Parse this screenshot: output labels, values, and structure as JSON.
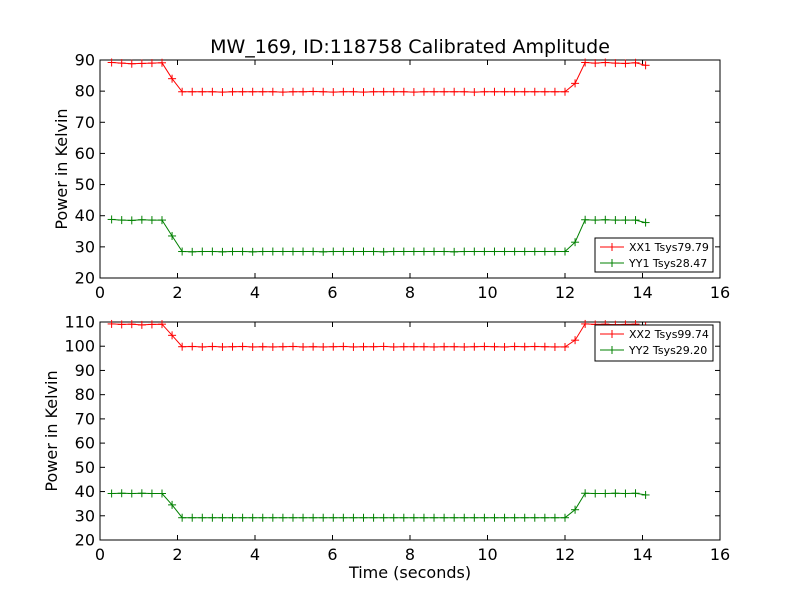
{
  "chart_data": [
    {
      "type": "line",
      "title": "MW_169, ID:118758 Calibrated Amplitude",
      "xlabel": "",
      "ylabel": "Power in Kelvin",
      "xlim": [
        0,
        16
      ],
      "ylim": [
        20,
        90
      ],
      "xticks": [
        "0",
        "2",
        "4",
        "6",
        "8",
        "10",
        "12",
        "14",
        "16"
      ],
      "yticks": [
        "20",
        "30",
        "40",
        "50",
        "60",
        "70",
        "80",
        "90"
      ],
      "grid": false,
      "legend_position": "lower-right",
      "x": [
        0.3,
        0.56,
        0.82,
        1.08,
        1.34,
        1.6,
        1.86,
        2.12,
        2.38,
        2.64,
        2.9,
        3.16,
        3.42,
        3.68,
        3.94,
        4.2,
        4.46,
        4.72,
        4.98,
        5.24,
        5.5,
        5.76,
        6.02,
        6.28,
        6.54,
        6.8,
        7.06,
        7.32,
        7.58,
        7.84,
        8.1,
        8.36,
        8.62,
        8.88,
        9.14,
        9.4,
        9.66,
        9.92,
        10.18,
        10.44,
        10.7,
        10.96,
        11.22,
        11.48,
        11.74,
        12.0,
        12.26,
        12.52,
        12.78,
        13.04,
        13.3,
        13.56,
        13.82,
        14.08
      ],
      "series": [
        {
          "name": "XX1 Tsys79.79",
          "color": "#ff0000",
          "values": [
            89.2,
            89.0,
            88.8,
            88.9,
            89.0,
            89.1,
            84.0,
            79.8,
            79.8,
            79.8,
            79.8,
            79.7,
            79.8,
            79.8,
            79.8,
            79.8,
            79.8,
            79.7,
            79.8,
            79.8,
            79.9,
            79.8,
            79.7,
            79.8,
            79.8,
            79.7,
            79.8,
            79.8,
            79.8,
            79.8,
            79.7,
            79.8,
            79.8,
            79.8,
            79.8,
            79.8,
            79.7,
            79.8,
            79.8,
            79.8,
            79.8,
            79.8,
            79.8,
            79.8,
            79.8,
            79.8,
            82.5,
            89.2,
            89.0,
            89.2,
            89.0,
            88.9,
            89.1,
            88.3
          ]
        },
        {
          "name": "YY1 Tsys28.47",
          "color": "#008000",
          "values": [
            38.8,
            38.6,
            38.5,
            38.7,
            38.6,
            38.6,
            33.5,
            28.5,
            28.4,
            28.5,
            28.5,
            28.4,
            28.5,
            28.5,
            28.4,
            28.5,
            28.5,
            28.5,
            28.5,
            28.5,
            28.5,
            28.4,
            28.5,
            28.5,
            28.5,
            28.5,
            28.5,
            28.4,
            28.5,
            28.5,
            28.5,
            28.5,
            28.5,
            28.5,
            28.4,
            28.5,
            28.5,
            28.5,
            28.5,
            28.5,
            28.5,
            28.5,
            28.5,
            28.5,
            28.5,
            28.5,
            31.5,
            38.7,
            38.6,
            38.7,
            38.6,
            38.6,
            38.6,
            37.8
          ]
        }
      ]
    },
    {
      "type": "line",
      "title": "",
      "xlabel": "Time (seconds)",
      "ylabel": "Power in Kelvin",
      "xlim": [
        0,
        16
      ],
      "ylim": [
        20,
        110
      ],
      "xticks": [
        "0",
        "2",
        "4",
        "6",
        "8",
        "10",
        "12",
        "14",
        "16"
      ],
      "yticks": [
        "20",
        "30",
        "40",
        "50",
        "60",
        "70",
        "80",
        "90",
        "100",
        "110"
      ],
      "grid": false,
      "legend_position": "upper-right",
      "x": [
        0.3,
        0.56,
        0.82,
        1.08,
        1.34,
        1.6,
        1.86,
        2.12,
        2.38,
        2.64,
        2.9,
        3.16,
        3.42,
        3.68,
        3.94,
        4.2,
        4.46,
        4.72,
        4.98,
        5.24,
        5.5,
        5.76,
        6.02,
        6.28,
        6.54,
        6.8,
        7.06,
        7.32,
        7.58,
        7.84,
        8.1,
        8.36,
        8.62,
        8.88,
        9.14,
        9.4,
        9.66,
        9.92,
        10.18,
        10.44,
        10.7,
        10.96,
        11.22,
        11.48,
        11.74,
        12.0,
        12.26,
        12.52,
        12.78,
        13.04,
        13.3,
        13.56,
        13.82,
        14.08
      ],
      "series": [
        {
          "name": "XX2 Tsys99.74",
          "color": "#ff0000",
          "values": [
            109.2,
            109.0,
            109.1,
            108.8,
            109.0,
            109.1,
            104.5,
            99.8,
            99.9,
            99.7,
            99.9,
            99.7,
            99.8,
            99.9,
            99.7,
            99.8,
            99.7,
            99.8,
            99.9,
            99.7,
            99.8,
            99.7,
            99.8,
            99.9,
            99.7,
            99.8,
            99.8,
            99.9,
            99.7,
            99.8,
            99.8,
            99.8,
            99.7,
            99.8,
            99.8,
            99.7,
            99.8,
            99.9,
            99.8,
            99.7,
            99.9,
            99.8,
            99.9,
            99.8,
            99.7,
            99.7,
            102.5,
            109.2,
            109.0,
            109.1,
            108.9,
            109.0,
            109.1,
            108.2
          ]
        },
        {
          "name": "YY2 Tsys29.20",
          "color": "#008000",
          "values": [
            39.2,
            39.3,
            39.2,
            39.3,
            39.2,
            39.2,
            34.5,
            29.2,
            29.2,
            29.2,
            29.2,
            29.2,
            29.2,
            29.2,
            29.2,
            29.2,
            29.2,
            29.2,
            29.2,
            29.2,
            29.2,
            29.2,
            29.2,
            29.2,
            29.2,
            29.2,
            29.2,
            29.2,
            29.2,
            29.2,
            29.2,
            29.2,
            29.2,
            29.2,
            29.2,
            29.2,
            29.2,
            29.2,
            29.2,
            29.2,
            29.2,
            29.2,
            29.2,
            29.2,
            29.2,
            29.2,
            32.5,
            39.3,
            39.2,
            39.2,
            39.3,
            39.2,
            39.3,
            38.6
          ]
        }
      ]
    }
  ]
}
